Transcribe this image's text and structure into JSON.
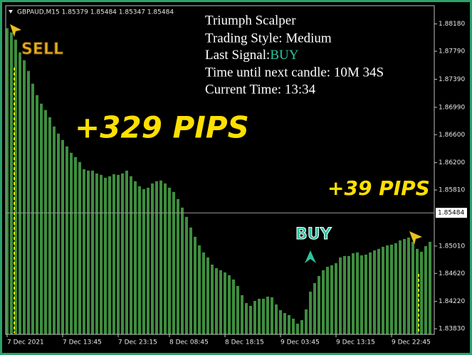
{
  "chart_data": {
    "type": "bar",
    "header": "GBPAUD,M15  1.85379 1.85484 1.85347 1.85484",
    "color": "#3e8e3e",
    "categories": [
      "7 Dec 2021",
      null,
      null,
      null,
      null,
      null,
      null,
      null,
      null,
      null,
      null,
      null,
      null,
      "7 Dec 13:45",
      null,
      null,
      null,
      null,
      null,
      null,
      null,
      null,
      null,
      null,
      null,
      null,
      "7 Dec 23:15",
      null,
      null,
      null,
      null,
      null,
      null,
      null,
      null,
      null,
      null,
      null,
      "8 Dec 08:45",
      null,
      null,
      null,
      null,
      null,
      null,
      null,
      null,
      null,
      null,
      null,
      null,
      "8 Dec 18:15",
      null,
      null,
      null,
      null,
      null,
      null,
      null,
      null,
      null,
      null,
      null,
      null,
      "9 Dec 03:45",
      null,
      null,
      null,
      null,
      null,
      null,
      null,
      null,
      null,
      null,
      null,
      null,
      "9 Dec 13:15",
      null,
      null,
      null,
      null,
      null,
      null,
      null,
      null,
      null,
      null,
      null,
      null,
      "9 Dec 22:45",
      null,
      null,
      null,
      null,
      null,
      null,
      null,
      null,
      null
    ],
    "values": [
      1.88119,
      1.88058,
      1.87956,
      1.87774,
      1.87662,
      1.87509,
      1.87327,
      1.87164,
      1.87042,
      1.86951,
      1.86849,
      1.86717,
      1.86615,
      1.86524,
      1.86432,
      1.86341,
      1.8628,
      1.86209,
      1.86107,
      1.86087,
      1.86087,
      1.86046,
      1.86026,
      1.85985,
      1.86006,
      1.86036,
      1.86026,
      1.86046,
      1.86087,
      1.86006,
      1.85935,
      1.85864,
      1.85823,
      1.85843,
      1.85904,
      1.85935,
      1.85945,
      1.85904,
      1.85843,
      1.85782,
      1.85681,
      1.85559,
      1.85427,
      1.85274,
      1.85142,
      1.8502,
      1.84919,
      1.84848,
      1.84746,
      1.84695,
      1.84665,
      1.84634,
      1.84594,
      1.84533,
      1.84441,
      1.84309,
      1.84197,
      1.84157,
      1.84228,
      1.84258,
      1.84258,
      1.84289,
      1.84279,
      1.84177,
      1.84096,
      1.84055,
      1.84025,
      1.83974,
      1.83903,
      1.83953,
      1.84106,
      1.8436,
      1.84482,
      1.84583,
      1.84665,
      1.84715,
      1.84736,
      1.84766,
      1.84848,
      1.84868,
      1.84868,
      1.84908,
      1.84919,
      1.84878,
      1.84888,
      1.84919,
      1.84949,
      1.8497,
      1.85,
      1.8502,
      1.8503,
      1.85051,
      1.85091,
      1.85112,
      1.85132,
      1.85071,
      1.8497,
      1.84929,
      1.8501,
      1.85071
    ],
    "ylim": [
      1.8375,
      1.8844
    ],
    "yticks": [
      {
        "value": 1.8818,
        "label": "1.88180"
      },
      {
        "value": 1.8779,
        "label": "1.87790"
      },
      {
        "value": 1.8739,
        "label": "1.87390"
      },
      {
        "value": 1.8699,
        "label": "1.86990"
      },
      {
        "value": 1.866,
        "label": "1.86600"
      },
      {
        "value": 1.862,
        "label": "1.86200"
      },
      {
        "value": 1.8581,
        "label": "1.85810"
      },
      {
        "value": 1.8501,
        "label": "1.85010"
      },
      {
        "value": 1.8462,
        "label": "1.84620"
      },
      {
        "value": 1.8422,
        "label": "1.84220"
      },
      {
        "value": 1.8383,
        "label": "1.83830"
      }
    ],
    "current_price": {
      "value": 1.85484,
      "label": "1.85484"
    },
    "signals": {
      "sell": "SELL",
      "buy": "BUY"
    },
    "pips": [
      "+329 PIPS",
      "+39 PIPS"
    ]
  },
  "panel": {
    "title": "Triumph Scalper",
    "style": "Trading Style: Medium",
    "last_signal_label": "Last Signal:",
    "last_signal": "BUY",
    "next_candle": "Time until next candle: 10M 34S",
    "current_time": "Current Time: 13:34"
  }
}
